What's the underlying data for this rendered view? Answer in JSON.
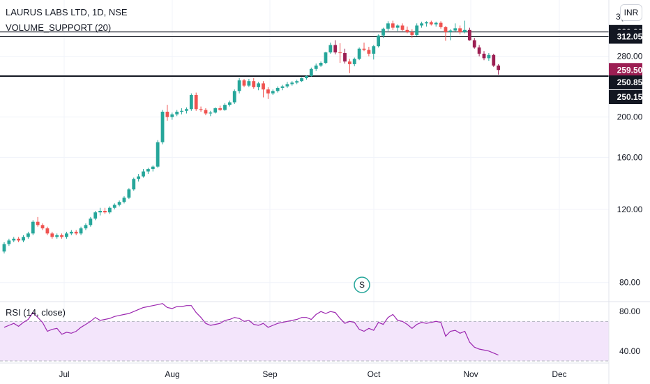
{
  "header": {
    "symbol": "LAURUS LABS LTD, 1D, NSE",
    "indicator": "VOLUME_SUPPORT (20)",
    "currency": "INR",
    "rsi_label": "RSI (14, close)",
    "partial_top_label": "3("
  },
  "marker": {
    "label": "S"
  },
  "colors": {
    "up": "#26a69a",
    "down": "#ef5350",
    "down_dark": "#9c1f53",
    "rsi_line": "#9c27b0",
    "rsi_band": "#f3e5fb",
    "level_line": "#131722",
    "tag_dark": "#131722",
    "tag_red": "#9c1f53",
    "grid": "#f0f3fa"
  },
  "chart_data": [
    {
      "type": "candlestick",
      "y_scale": "log",
      "ylim": [
        72,
        375
      ],
      "y_ticks": [
        80,
        120,
        160,
        200,
        280
      ],
      "y_tick_labels": [
        "80.00",
        "120.00",
        "160.00",
        "200.00",
        "280.00"
      ],
      "x_months": [
        "Jul",
        "Aug",
        "Sep",
        "Oct",
        "Nov",
        "Dec"
      ],
      "levels": [
        {
          "value": 320.3,
          "label": "320.30"
        },
        {
          "value": 312.05,
          "label": "312.05"
        },
        {
          "value": 250.85,
          "label": "250.85"
        },
        {
          "value": 250.15,
          "label": "250.15"
        }
      ],
      "last_price": {
        "value": 259.5,
        "label": "259.50"
      },
      "candles": [
        [
          0,
          95,
          100,
          94,
          99
        ],
        [
          1,
          99,
          102,
          98,
          101
        ],
        [
          2,
          101,
          103,
          100,
          102
        ],
        [
          3,
          102,
          103,
          100,
          101
        ],
        [
          4,
          101,
          104,
          100,
          103
        ],
        [
          5,
          103,
          106,
          102,
          105
        ],
        [
          6,
          105,
          113,
          104,
          112
        ],
        [
          7,
          112,
          115,
          109,
          110
        ],
        [
          8,
          110,
          111,
          107,
          108
        ],
        [
          9,
          108,
          109,
          104,
          105
        ],
        [
          10,
          105,
          106,
          102,
          103
        ],
        [
          11,
          103,
          105,
          102,
          104
        ],
        [
          12,
          104,
          105,
          102,
          103
        ],
        [
          13,
          103,
          106,
          102,
          105
        ],
        [
          14,
          105,
          107,
          104,
          106
        ],
        [
          15,
          106,
          107,
          104,
          105
        ],
        [
          16,
          105,
          109,
          104,
          108
        ],
        [
          17,
          108,
          111,
          107,
          110
        ],
        [
          18,
          110,
          115,
          109,
          114
        ],
        [
          19,
          114,
          119,
          113,
          118
        ],
        [
          20,
          118,
          121,
          116,
          119
        ],
        [
          21,
          119,
          121,
          117,
          118
        ],
        [
          22,
          118,
          122,
          117,
          121
        ],
        [
          23,
          121,
          124,
          120,
          123
        ],
        [
          24,
          123,
          126,
          122,
          125
        ],
        [
          25,
          125,
          129,
          124,
          128
        ],
        [
          26,
          128,
          135,
          127,
          134
        ],
        [
          27,
          134,
          143,
          133,
          142
        ],
        [
          28,
          142,
          146,
          140,
          144
        ],
        [
          29,
          144,
          150,
          143,
          148
        ],
        [
          30,
          148,
          151,
          146,
          150
        ],
        [
          31,
          150,
          153,
          148,
          152
        ],
        [
          32,
          152,
          176,
          151,
          174
        ],
        [
          33,
          174,
          208,
          172,
          206
        ],
        [
          34,
          206,
          214,
          196,
          200
        ],
        [
          35,
          200,
          205,
          197,
          203
        ],
        [
          36,
          203,
          208,
          201,
          206
        ],
        [
          37,
          206,
          210,
          203,
          207
        ],
        [
          38,
          207,
          211,
          204,
          209
        ],
        [
          39,
          209,
          228,
          207,
          226
        ],
        [
          40,
          226,
          229,
          207,
          209
        ],
        [
          41,
          209,
          212,
          206,
          208
        ],
        [
          42,
          208,
          210,
          202,
          204
        ],
        [
          43,
          204,
          207,
          201,
          205
        ],
        [
          44,
          205,
          211,
          204,
          210
        ],
        [
          45,
          210,
          213,
          207,
          208
        ],
        [
          46,
          208,
          216,
          207,
          214
        ],
        [
          47,
          214,
          219,
          212,
          217
        ],
        [
          48,
          217,
          233,
          215,
          231
        ],
        [
          49,
          231,
          248,
          228,
          245
        ],
        [
          50,
          245,
          247,
          236,
          238
        ],
        [
          51,
          238,
          247,
          236,
          244
        ],
        [
          52,
          244,
          248,
          234,
          236
        ],
        [
          53,
          236,
          243,
          232,
          241
        ],
        [
          54,
          241,
          244,
          223,
          233
        ],
        [
          55,
          233,
          236,
          221,
          228
        ],
        [
          56,
          228,
          233,
          226,
          231
        ],
        [
          57,
          231,
          237,
          229,
          235
        ],
        [
          58,
          235,
          239,
          232,
          237
        ],
        [
          59,
          237,
          243,
          235,
          240
        ],
        [
          60,
          240,
          244,
          238,
          242
        ],
        [
          61,
          242,
          246,
          240,
          244
        ],
        [
          62,
          244,
          249,
          243,
          248
        ],
        [
          63,
          248,
          252,
          246,
          251
        ],
        [
          64,
          251,
          263,
          250,
          261
        ],
        [
          65,
          261,
          269,
          258,
          266
        ],
        [
          66,
          266,
          272,
          264,
          270
        ],
        [
          67,
          270,
          287,
          268,
          286
        ],
        [
          68,
          286,
          302,
          284,
          298
        ],
        [
          69,
          298,
          306,
          283,
          286
        ],
        [
          70,
          286,
          301,
          270,
          285
        ],
        [
          71,
          285,
          292,
          269,
          272
        ],
        [
          72,
          272,
          276,
          255,
          268
        ],
        [
          73,
          268,
          278,
          265,
          276
        ],
        [
          74,
          276,
          294,
          274,
          292
        ],
        [
          75,
          292,
          302,
          288,
          290
        ],
        [
          76,
          290,
          295,
          280,
          284
        ],
        [
          77,
          284,
          298,
          275,
          296
        ],
        [
          78,
          296,
          316,
          294,
          314
        ],
        [
          79,
          314,
          328,
          310,
          326
        ],
        [
          80,
          326,
          340,
          322,
          336
        ],
        [
          81,
          336,
          341,
          324,
          328
        ],
        [
          82,
          328,
          334,
          322,
          332
        ],
        [
          83,
          332,
          336,
          322,
          324
        ],
        [
          84,
          324,
          330,
          318,
          320
        ],
        [
          85,
          320,
          325,
          310,
          315
        ],
        [
          86,
          315,
          336,
          313,
          332
        ],
        [
          87,
          332,
          339,
          328,
          336
        ],
        [
          88,
          336,
          340,
          330,
          338
        ],
        [
          89,
          338,
          341,
          332,
          334
        ],
        [
          90,
          334,
          339,
          330,
          337
        ],
        [
          91,
          337,
          340,
          326,
          329
        ],
        [
          92,
          329,
          331,
          305,
          320
        ],
        [
          93,
          320,
          325,
          306,
          323
        ],
        [
          94,
          323,
          336,
          321,
          327
        ],
        [
          95,
          327,
          332,
          316,
          320
        ],
        [
          96,
          320,
          341,
          318,
          324
        ],
        [
          97,
          324,
          328,
          305,
          306
        ],
        [
          98,
          306,
          310,
          292,
          294
        ],
        [
          99,
          294,
          298,
          280,
          284
        ],
        [
          100,
          284,
          288,
          274,
          277
        ],
        [
          101,
          277,
          285,
          273,
          282
        ],
        [
          102,
          282,
          284,
          264,
          266
        ],
        [
          103,
          266,
          268,
          253,
          259.5
        ]
      ]
    },
    {
      "type": "line",
      "title": "RSI (14, close)",
      "ylim": [
        30,
        90
      ],
      "y_ticks": [
        40,
        80
      ],
      "y_tick_labels": [
        "40.00",
        "80.00"
      ],
      "band": [
        30,
        70
      ],
      "values": [
        64,
        66,
        68,
        65,
        69,
        72,
        79,
        74,
        69,
        60,
        62,
        63,
        57,
        59,
        58,
        60,
        64,
        67,
        70,
        74,
        71,
        72,
        73,
        75,
        76,
        77,
        78,
        80,
        82,
        84,
        85,
        86,
        87,
        88,
        84,
        83,
        85,
        85,
        86,
        86,
        79,
        74,
        68,
        66,
        67,
        68,
        71,
        72,
        74,
        73,
        70,
        71,
        67,
        66,
        68,
        64,
        66,
        68,
        69,
        70,
        71,
        72,
        74,
        74,
        72,
        77,
        80,
        78,
        80,
        79,
        73,
        68,
        70,
        69,
        62,
        60,
        63,
        61,
        69,
        67,
        74,
        77,
        71,
        70,
        67,
        63,
        67,
        69,
        68,
        69,
        70,
        69,
        55,
        60,
        61,
        58,
        60,
        49,
        44,
        42,
        41,
        40,
        38,
        36
      ]
    }
  ]
}
